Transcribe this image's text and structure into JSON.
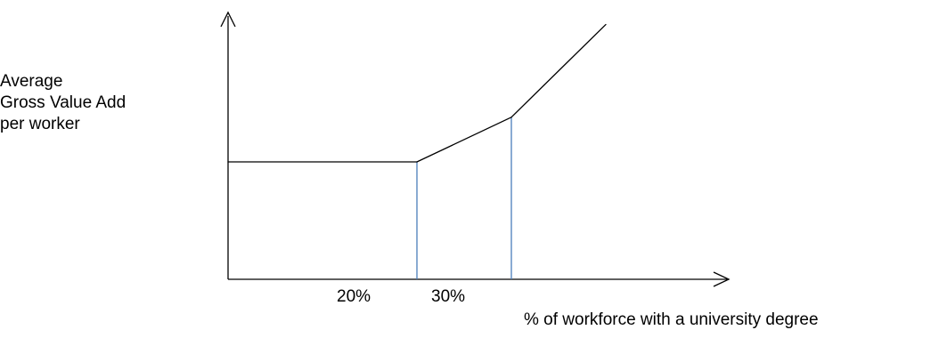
{
  "chart_data": {
    "type": "line",
    "title": "",
    "ylabel_lines": [
      "Average",
      "Gross Value Add",
      "per worker"
    ],
    "xlabel": "% of workforce with a university degree",
    "x_ticks": [
      "20%",
      "30%"
    ],
    "series": [
      {
        "x": [
          0,
          20,
          30,
          40
        ],
        "y": [
          1.0,
          1.0,
          1.38,
          2.17
        ]
      }
    ],
    "reference_lines_x": [
      20,
      30
    ],
    "reference_line_color": "#4a7ebb",
    "line_color": "#000000",
    "axis_color": "#000000",
    "grid": false
  }
}
